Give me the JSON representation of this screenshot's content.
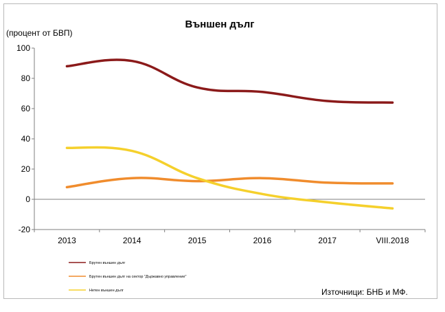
{
  "chart_data": {
    "type": "line",
    "title": "Външен дълг",
    "ylabel": "(процент от БВП)",
    "xlabel": "",
    "categories": [
      "2013",
      "2014",
      "2015",
      "2016",
      "2017",
      "VIII.2018"
    ],
    "ylim": [
      -20,
      100
    ],
    "yticks": [
      -20,
      0,
      20,
      40,
      60,
      80,
      100
    ],
    "grid": false,
    "legend_position": "bottom-left",
    "series": [
      {
        "name": "Брутен външен дълг",
        "color": "#8b1a1a",
        "values": [
          88,
          91.5,
          74,
          71,
          65,
          64
        ]
      },
      {
        "name": "Брутен външен дълг на сектор \"Държавно управление\"",
        "color": "#f08c2d",
        "values": [
          8,
          14,
          12,
          14,
          11,
          10.5
        ]
      },
      {
        "name": "Нетен външен дълг",
        "color": "#f5d02c",
        "values": [
          34,
          32,
          14,
          3.5,
          -2,
          -6
        ]
      }
    ],
    "source": "Източници: БНБ и МФ."
  }
}
